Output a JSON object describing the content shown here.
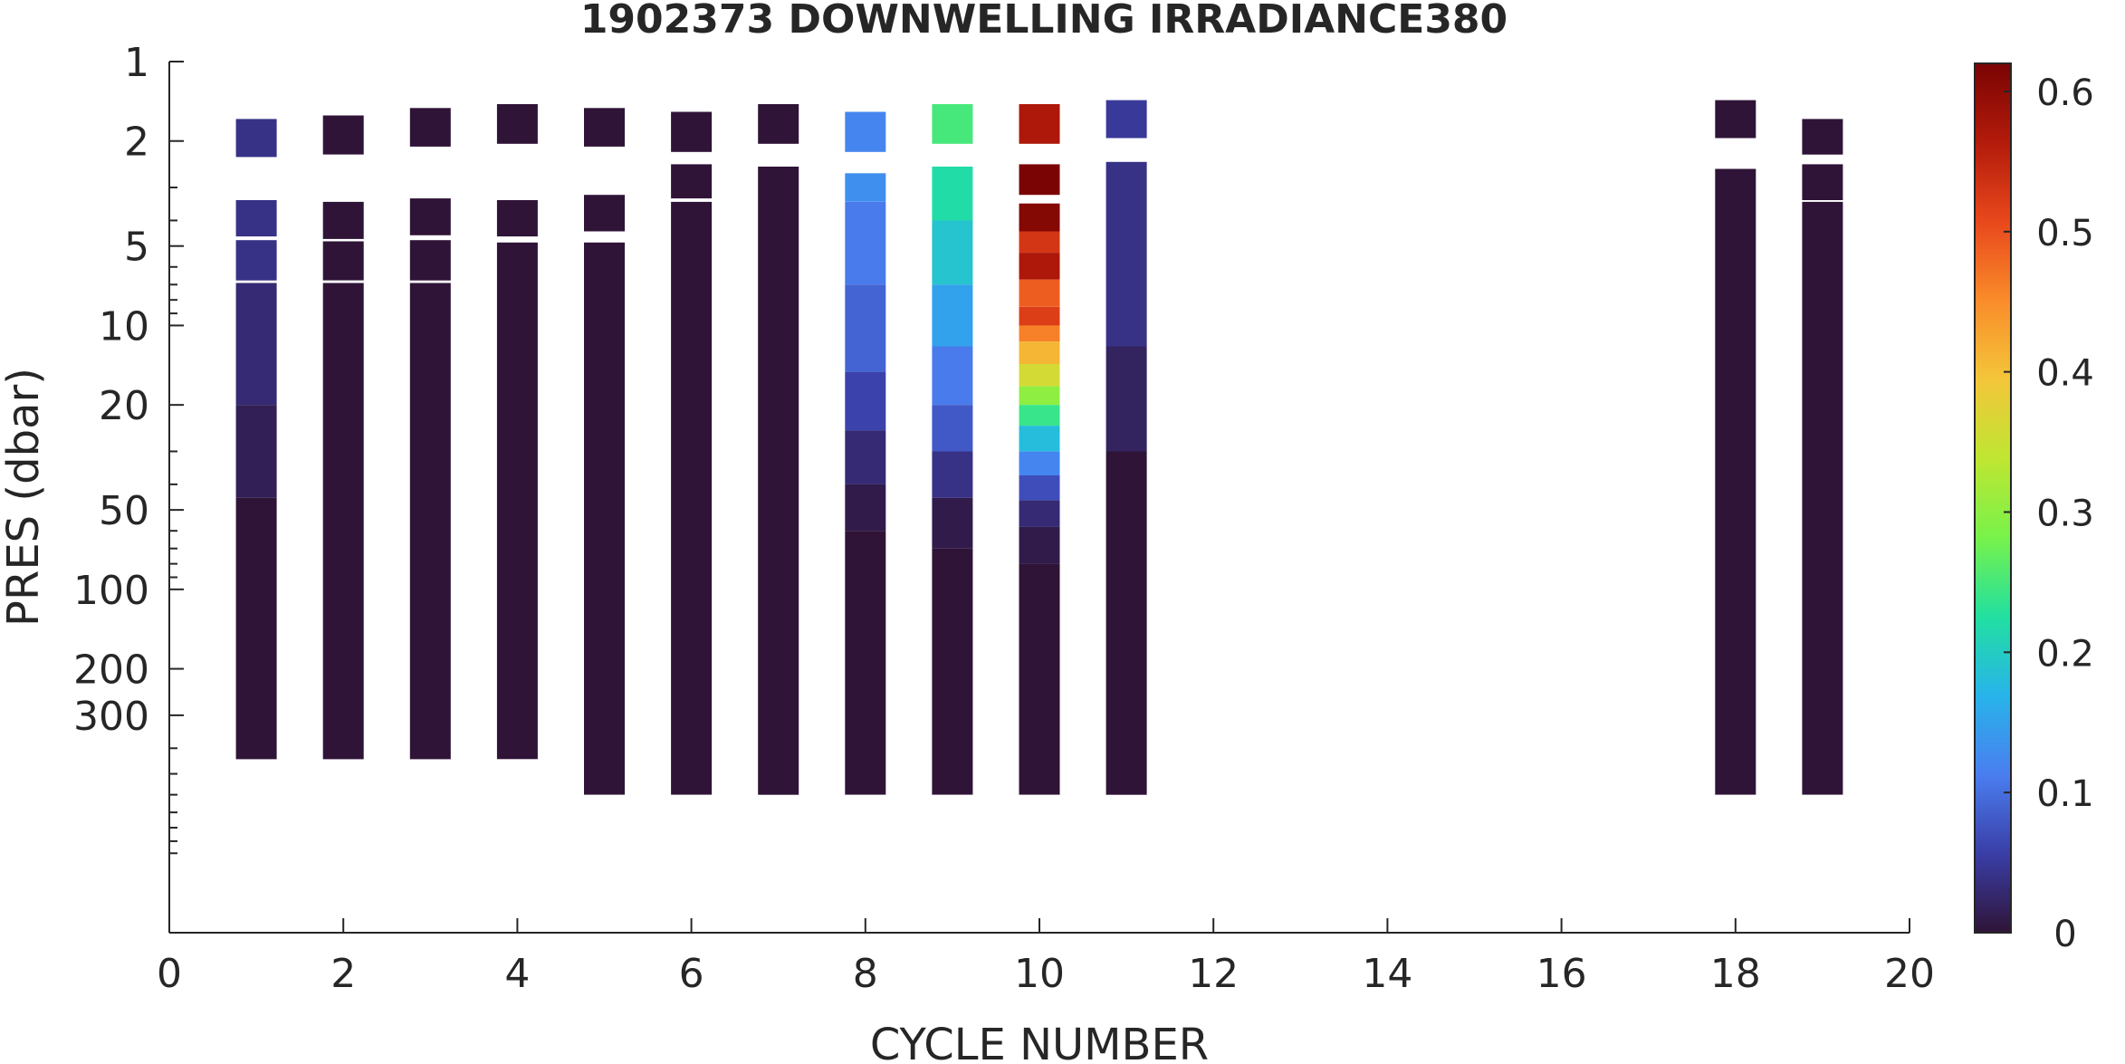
{
  "chart_data": {
    "type": "heatmap",
    "title": "1902373  DOWNWELLING IRRADIANCE380",
    "xlabel": "CYCLE NUMBER",
    "ylabel": "PRES (dbar)",
    "xlim": [
      0,
      20
    ],
    "ylim": [
      1,
      2000
    ],
    "y_scale": "log",
    "y_reversed": true,
    "x_ticks": [
      "0",
      "2",
      "4",
      "6",
      "8",
      "10",
      "12",
      "14",
      "16",
      "18",
      "20"
    ],
    "y_ticks": [
      "1",
      "2",
      "5",
      "10",
      "20",
      "50",
      "100",
      "200",
      "300"
    ],
    "colorbar": {
      "range": [
        0,
        0.62
      ],
      "ticks": [
        "0",
        "0.1",
        "0.2",
        "0.3",
        "0.4",
        "0.5",
        "0.6"
      ],
      "colormap": [
        "#2f1437",
        "#3a3ea7",
        "#4a7ef0",
        "#27b4ea",
        "#22e0a0",
        "#78f24a",
        "#bfe632",
        "#f3c63a",
        "#fa8c2a",
        "#e8481c",
        "#b31b0b",
        "#7a0403"
      ]
    },
    "series": [
      {
        "cycle": 1,
        "segments": [
          {
            "p_top": 1.65,
            "p_bot": 2.3,
            "value": 0.04
          },
          {
            "p_top": 3.35,
            "p_bot": 4.6,
            "value": 0.04
          },
          {
            "p_top": 4.75,
            "p_bot": 6.75,
            "value": 0.04
          },
          {
            "p_top": 6.9,
            "p_bot": 20,
            "value": 0.03
          },
          {
            "p_top": 20,
            "p_bot": 45,
            "value": 0.015
          },
          {
            "p_top": 45,
            "p_bot": 440,
            "value": 0.0
          }
        ]
      },
      {
        "cycle": 2,
        "segments": [
          {
            "p_top": 1.6,
            "p_bot": 2.25,
            "value": 0.0
          },
          {
            "p_top": 3.4,
            "p_bot": 4.7,
            "value": 0.0
          },
          {
            "p_top": 4.8,
            "p_bot": 6.75,
            "value": 0.0
          },
          {
            "p_top": 6.9,
            "p_bot": 440,
            "value": 0.0
          }
        ]
      },
      {
        "cycle": 3,
        "segments": [
          {
            "p_top": 1.5,
            "p_bot": 2.1,
            "value": 0.0
          },
          {
            "p_top": 3.3,
            "p_bot": 4.55,
            "value": 0.0
          },
          {
            "p_top": 4.75,
            "p_bot": 6.75,
            "value": 0.0
          },
          {
            "p_top": 6.9,
            "p_bot": 440,
            "value": 0.0
          }
        ]
      },
      {
        "cycle": 4,
        "segments": [
          {
            "p_top": 1.45,
            "p_bot": 2.05,
            "value": 0.0
          },
          {
            "p_top": 3.35,
            "p_bot": 4.6,
            "value": 0.0
          },
          {
            "p_top": 4.85,
            "p_bot": 440,
            "value": 0.0
          }
        ]
      },
      {
        "cycle": 5,
        "segments": [
          {
            "p_top": 1.5,
            "p_bot": 2.1,
            "value": 0.0
          },
          {
            "p_top": 3.2,
            "p_bot": 4.4,
            "value": 0.0
          },
          {
            "p_top": 4.85,
            "p_bot": 600,
            "value": 0.0
          }
        ]
      },
      {
        "cycle": 6,
        "segments": [
          {
            "p_top": 1.55,
            "p_bot": 2.2,
            "value": 0.0
          },
          {
            "p_top": 2.45,
            "p_bot": 3.3,
            "value": 0.0
          },
          {
            "p_top": 3.4,
            "p_bot": 600,
            "value": 0.0
          }
        ]
      },
      {
        "cycle": 7,
        "segments": [
          {
            "p_top": 1.45,
            "p_bot": 2.05,
            "value": 0.0
          },
          {
            "p_top": 2.5,
            "p_bot": 600,
            "value": 0.0
          }
        ]
      },
      {
        "cycle": 8,
        "segments": [
          {
            "p_top": 1.55,
            "p_bot": 2.2,
            "value": 0.12
          },
          {
            "p_top": 2.65,
            "p_bot": 3.4,
            "value": 0.13
          },
          {
            "p_top": 3.4,
            "p_bot": 7,
            "value": 0.11
          },
          {
            "p_top": 7,
            "p_bot": 15,
            "value": 0.09
          },
          {
            "p_top": 15,
            "p_bot": 25,
            "value": 0.06
          },
          {
            "p_top": 25,
            "p_bot": 40,
            "value": 0.03
          },
          {
            "p_top": 40,
            "p_bot": 60,
            "value": 0.01
          },
          {
            "p_top": 60,
            "p_bot": 600,
            "value": 0.0
          }
        ]
      },
      {
        "cycle": 9,
        "segments": [
          {
            "p_top": 1.45,
            "p_bot": 2.05,
            "value": 0.25
          },
          {
            "p_top": 2.5,
            "p_bot": 4.0,
            "value": 0.22
          },
          {
            "p_top": 4.0,
            "p_bot": 7,
            "value": 0.19
          },
          {
            "p_top": 7,
            "p_bot": 12,
            "value": 0.15
          },
          {
            "p_top": 12,
            "p_bot": 20,
            "value": 0.11
          },
          {
            "p_top": 20,
            "p_bot": 30,
            "value": 0.08
          },
          {
            "p_top": 30,
            "p_bot": 45,
            "value": 0.04
          },
          {
            "p_top": 45,
            "p_bot": 70,
            "value": 0.01
          },
          {
            "p_top": 70,
            "p_bot": 600,
            "value": 0.0
          }
        ]
      },
      {
        "cycle": 10,
        "segments": [
          {
            "p_top": 1.45,
            "p_bot": 2.05,
            "value": 0.57
          },
          {
            "p_top": 2.45,
            "p_bot": 3.2,
            "value": 0.62
          },
          {
            "p_top": 3.45,
            "p_bot": 4.4,
            "value": 0.61
          },
          {
            "p_top": 4.4,
            "p_bot": 5.3,
            "value": 0.53
          },
          {
            "p_top": 5.3,
            "p_bot": 6.7,
            "value": 0.57
          },
          {
            "p_top": 6.7,
            "p_bot": 8.5,
            "value": 0.49
          },
          {
            "p_top": 8.5,
            "p_bot": 10,
            "value": 0.52
          },
          {
            "p_top": 10,
            "p_bot": 11.5,
            "value": 0.46
          },
          {
            "p_top": 11.5,
            "p_bot": 14,
            "value": 0.41
          },
          {
            "p_top": 14,
            "p_bot": 17,
            "value": 0.36
          },
          {
            "p_top": 17,
            "p_bot": 20,
            "value": 0.3
          },
          {
            "p_top": 20,
            "p_bot": 24,
            "value": 0.24
          },
          {
            "p_top": 24,
            "p_bot": 30,
            "value": 0.18
          },
          {
            "p_top": 30,
            "p_bot": 37,
            "value": 0.12
          },
          {
            "p_top": 37,
            "p_bot": 46,
            "value": 0.07
          },
          {
            "p_top": 46,
            "p_bot": 58,
            "value": 0.03
          },
          {
            "p_top": 58,
            "p_bot": 80,
            "value": 0.01
          },
          {
            "p_top": 80,
            "p_bot": 600,
            "value": 0.0
          }
        ]
      },
      {
        "cycle": 11,
        "segments": [
          {
            "p_top": 1.4,
            "p_bot": 1.95,
            "value": 0.05
          },
          {
            "p_top": 2.4,
            "p_bot": 4.0,
            "value": 0.04
          },
          {
            "p_top": 4.0,
            "p_bot": 12,
            "value": 0.04
          },
          {
            "p_top": 12,
            "p_bot": 30,
            "value": 0.02
          },
          {
            "p_top": 30,
            "p_bot": 600,
            "value": 0.0
          }
        ]
      },
      {
        "cycle": 18,
        "segments": [
          {
            "p_top": 1.4,
            "p_bot": 1.95,
            "value": 0.0
          },
          {
            "p_top": 2.55,
            "p_bot": 600,
            "value": 0.0
          }
        ]
      },
      {
        "cycle": 19,
        "segments": [
          {
            "p_top": 1.65,
            "p_bot": 2.25,
            "value": 0.0
          },
          {
            "p_top": 2.45,
            "p_bot": 3.35,
            "value": 0.0
          },
          {
            "p_top": 3.4,
            "p_bot": 600,
            "value": 0.0
          }
        ]
      }
    ]
  }
}
